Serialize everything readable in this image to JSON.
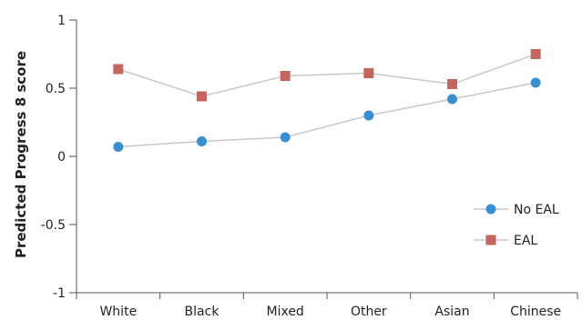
{
  "chart_data": {
    "type": "line",
    "categories": [
      "White",
      "Black",
      "Mixed",
      "Other",
      "Asian",
      "Chinese"
    ],
    "series": [
      {
        "name": "No EAL",
        "values": [
          0.07,
          0.11,
          0.14,
          0.3,
          0.42,
          0.54
        ],
        "color": "#3a8fd0",
        "marker": "circle"
      },
      {
        "name": "EAL",
        "values": [
          0.64,
          0.44,
          0.59,
          0.61,
          0.53,
          0.75
        ],
        "color": "#c4665f",
        "marker": "square"
      }
    ],
    "title": "",
    "xlabel": "",
    "ylabel": "Predicted Progress 8 score",
    "ylim": [
      -1,
      1
    ],
    "yticks": [
      "1",
      "0.5",
      "0",
      "-0.5",
      "-1"
    ],
    "ytick_values": [
      1,
      0.5,
      0,
      -0.5,
      -1
    ],
    "grid": false,
    "legend_position": "right",
    "line_color": "#c8c8c8",
    "axis_color": "#555555"
  }
}
